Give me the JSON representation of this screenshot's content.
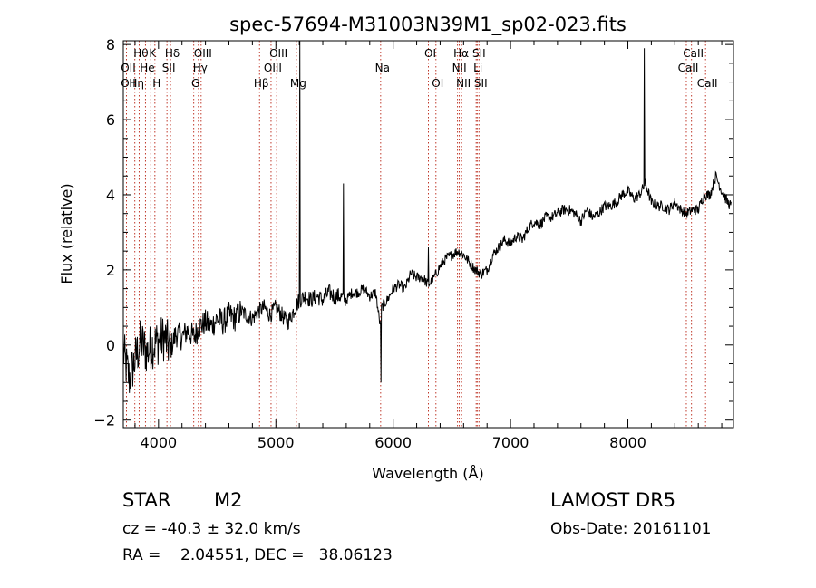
{
  "chart_data": {
    "type": "line",
    "title": "spec-57694-M31003N39M1_sp02-023.fits",
    "xlabel": "Wavelength (Å)",
    "ylabel": "Flux (relative)",
    "xlim": [
      3700,
      8900
    ],
    "ylim": [
      -2.2,
      8.1
    ],
    "xticks": [
      4000,
      5000,
      6000,
      7000,
      8000
    ],
    "yticks": [
      -2,
      0,
      2,
      4,
      6,
      8
    ],
    "grid": false,
    "series": [
      {
        "x": [
          3700,
          3750,
          3800,
          3850,
          3900,
          3950,
          4000,
          4050,
          4100,
          4150,
          4200,
          4250,
          4300,
          4350,
          4400,
          4450,
          4500,
          4550,
          4600,
          4650,
          4700,
          4750,
          4800,
          4850,
          4900,
          4950,
          5000,
          5050,
          5100,
          5150,
          5200,
          5250,
          5300,
          5350,
          5400,
          5450,
          5500,
          5550,
          5600,
          5650,
          5700,
          5750,
          5800,
          5850,
          5890,
          5900,
          5950,
          6000,
          6050,
          6100,
          6150,
          6200,
          6250,
          6300,
          6350,
          6400,
          6450,
          6500,
          6550,
          6600,
          6650,
          6700,
          6750,
          6800,
          6850,
          6900,
          6950,
          7000,
          7050,
          7100,
          7150,
          7200,
          7250,
          7300,
          7350,
          7400,
          7450,
          7500,
          7550,
          7600,
          7650,
          7700,
          7750,
          7800,
          7850,
          7900,
          7950,
          8000,
          8050,
          8100,
          8150,
          8200,
          8250,
          8300,
          8350,
          8400,
          8450,
          8500,
          8550,
          8600,
          8650,
          8700,
          8750,
          8800,
          8850,
          8880
        ],
        "y": [
          -0.2,
          -0.9,
          -0.4,
          0.1,
          -0.2,
          0.0,
          0.1,
          0.2,
          -0.1,
          0.3,
          0.2,
          0.4,
          0.2,
          0.5,
          0.6,
          0.5,
          0.7,
          0.6,
          0.8,
          0.7,
          0.9,
          0.8,
          0.7,
          0.9,
          1.0,
          0.8,
          1.0,
          0.8,
          0.6,
          0.9,
          1.2,
          1.3,
          1.2,
          1.3,
          1.2,
          1.4,
          1.3,
          1.3,
          1.2,
          1.4,
          1.4,
          1.5,
          1.3,
          1.4,
          0.5,
          1.0,
          1.2,
          1.5,
          1.6,
          1.5,
          1.9,
          1.8,
          1.8,
          1.6,
          1.8,
          2.1,
          2.3,
          2.4,
          2.5,
          2.4,
          2.2,
          2.0,
          1.9,
          2.0,
          2.4,
          2.6,
          2.8,
          2.7,
          2.9,
          2.8,
          3.1,
          3.3,
          3.2,
          3.4,
          3.4,
          3.5,
          3.6,
          3.6,
          3.5,
          3.3,
          3.6,
          3.4,
          3.5,
          3.7,
          3.7,
          3.8,
          4.0,
          4.1,
          3.9,
          4.0,
          4.3,
          3.8,
          3.7,
          3.7,
          3.6,
          3.8,
          3.6,
          3.5,
          3.6,
          3.6,
          4.0,
          4.0,
          4.5,
          4.1,
          3.8,
          3.7
        ],
        "spikes": [
          {
            "x": 5205,
            "y": 8.1
          },
          {
            "x": 5577,
            "y": 4.3
          },
          {
            "x": 5895,
            "y": -1.0
          },
          {
            "x": 6300,
            "y": 2.6
          },
          {
            "x": 8140,
            "y": 7.9
          }
        ]
      }
    ],
    "line_markers": [
      {
        "x": 3727,
        "label": "OII",
        "row": 2
      },
      {
        "x": 3727,
        "label": "OII",
        "row": 3
      },
      {
        "x": 3798,
        "label": "Hη",
        "row": 3
      },
      {
        "x": 3835,
        "label": "Hθ",
        "row": 1
      },
      {
        "x": 3889,
        "label": "He",
        "row": 2
      },
      {
        "x": 3934,
        "label": "K",
        "row": 1
      },
      {
        "x": 3969,
        "label": "H",
        "row": 3
      },
      {
        "x": 4072,
        "label": "SII",
        "row": 2
      },
      {
        "x": 4102,
        "label": "Hδ",
        "row": 1
      },
      {
        "x": 4300,
        "label": "G",
        "row": 3
      },
      {
        "x": 4340,
        "label": "Hγ",
        "row": 2
      },
      {
        "x": 4363,
        "label": "OIII",
        "row": 1
      },
      {
        "x": 4861,
        "label": "Hβ",
        "row": 3
      },
      {
        "x": 4959,
        "label": "OIII",
        "row": 2
      },
      {
        "x": 5007,
        "label": "OIII",
        "row": 1
      },
      {
        "x": 5175,
        "label": "Mg",
        "row": 3
      },
      {
        "x": 5893,
        "label": "Na",
        "row": 2
      },
      {
        "x": 6300,
        "label": "OI",
        "row": 1
      },
      {
        "x": 6364,
        "label": "OI",
        "row": 3
      },
      {
        "x": 6548,
        "label": "NII",
        "row": 2
      },
      {
        "x": 6563,
        "label": "Hα",
        "row": 1
      },
      {
        "x": 6583,
        "label": "NII",
        "row": 3
      },
      {
        "x": 6707,
        "label": "Li",
        "row": 2
      },
      {
        "x": 6716,
        "label": "SII",
        "row": 1
      },
      {
        "x": 6731,
        "label": "SII",
        "row": 3
      },
      {
        "x": 8498,
        "label": "CaII",
        "row": 2
      },
      {
        "x": 8542,
        "label": "CaII",
        "row": 1
      },
      {
        "x": 8662,
        "label": "CaII",
        "row": 3
      }
    ]
  },
  "info": {
    "obj_class": "STAR",
    "obj_subclass": "M2",
    "survey": "LAMOST DR5",
    "cz": "cz = -40.3 ± 32.0 km/s",
    "obs_date": "Obs-Date: 20161101",
    "radec": "RA =    2.04551, DEC =   38.06123"
  }
}
